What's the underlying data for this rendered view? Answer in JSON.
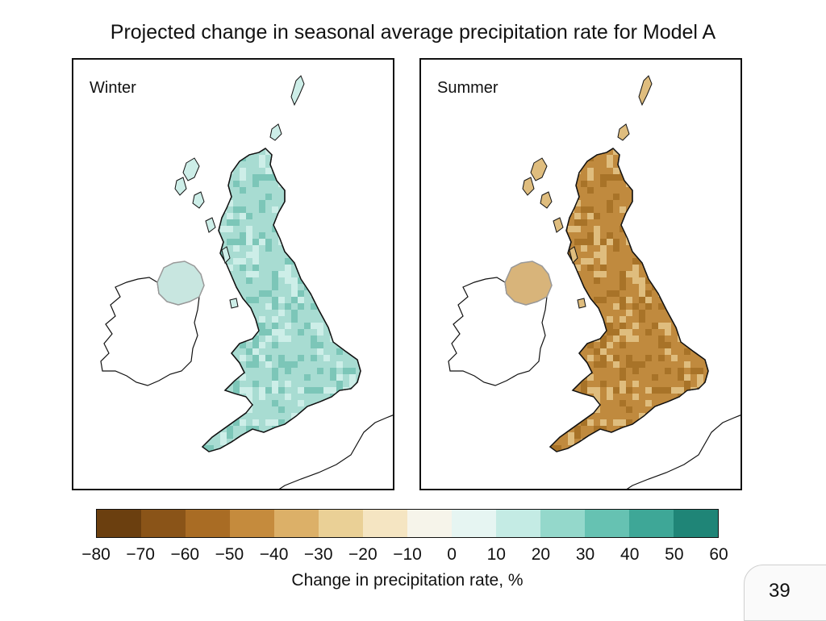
{
  "title": "Projected change in seasonal average precipitation rate for Model A",
  "panels": [
    {
      "label": "Winter",
      "fill": "#a8dcd2",
      "fill_dark": "#7cc6b8",
      "fill_light": "#cdeee8",
      "ni_fill": "#c8e6e0"
    },
    {
      "label": "Summer",
      "fill": "#c08a3e",
      "fill_dark": "#a87328",
      "fill_light": "#dfbd7e",
      "ni_fill": "#d8b47a"
    }
  ],
  "colorbar": {
    "colors": [
      "#6b3f0f",
      "#8a5418",
      "#a96c24",
      "#c58b3d",
      "#dcb068",
      "#ead096",
      "#f5e5c2",
      "#f6f4ea",
      "#e6f5f2",
      "#c4ebe4",
      "#94d8cb",
      "#66c2b2",
      "#3ea797",
      "#1f8577"
    ],
    "ticks": [
      "−80",
      "−70",
      "−60",
      "−50",
      "−40",
      "−30",
      "−20",
      "−10",
      "0",
      "10",
      "20",
      "30",
      "40",
      "50",
      "60"
    ],
    "label": "Change in precipitation rate, %"
  },
  "page_number": "39"
}
